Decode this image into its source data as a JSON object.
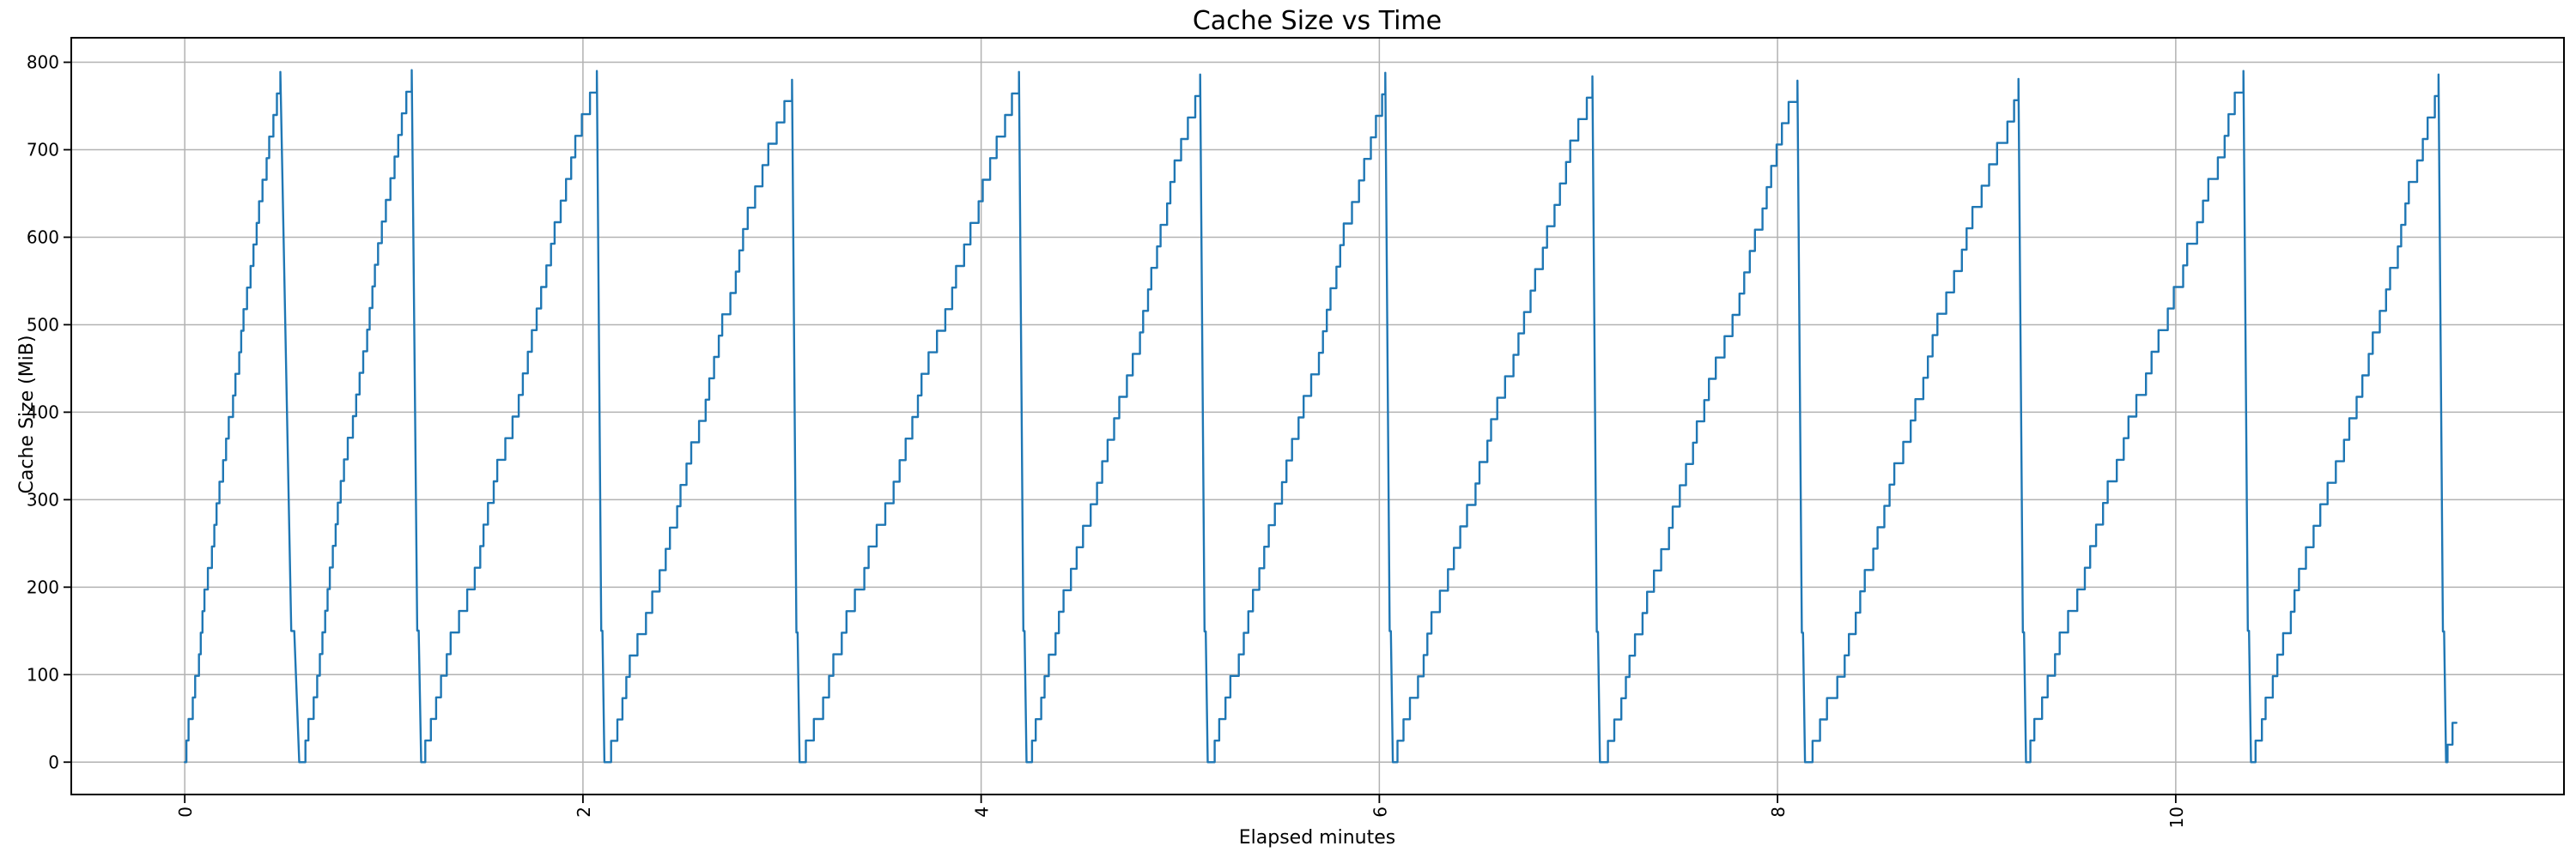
{
  "figure": {
    "background_color": "#ffffff",
    "kind": "matplotlib line plot"
  },
  "chart_data": {
    "type": "line",
    "title": "Cache Size vs Time",
    "xlabel": "Elapsed minutes",
    "ylabel": "Cache Size (MiB)",
    "x_ticks": [
      0,
      2,
      4,
      6,
      8,
      10
    ],
    "x_tick_rotation_deg": 90,
    "y_ticks": [
      0,
      100,
      200,
      300,
      400,
      500,
      600,
      700,
      800
    ],
    "xlim": [
      -0.57,
      11.95
    ],
    "ylim": [
      -37,
      828
    ],
    "grid": true,
    "legend": false,
    "line_color": "#1f77b4",
    "grid_color": "#b2b2b2",
    "pattern": "sawtooth: cache fills in ~25 MiB staircase steps up to ~790 MiB, then is rapidly evicted back to 0; repeats 12 times over ~11.4 minutes",
    "step_mib": 24.7,
    "peak_mib_approx": 790,
    "cycles": [
      {
        "start": 0.0,
        "peak_time": 0.48,
        "peak": 789
      },
      {
        "start": 0.58,
        "peak_time": 1.14,
        "peak": 791
      },
      {
        "start": 1.19,
        "peak_time": 2.07,
        "peak": 790
      },
      {
        "start": 2.11,
        "peak_time": 3.05,
        "peak": 780
      },
      {
        "start": 3.09,
        "peak_time": 4.19,
        "peak": 789
      },
      {
        "start": 4.23,
        "peak_time": 5.1,
        "peak": 786
      },
      {
        "start": 5.14,
        "peak_time": 6.03,
        "peak": 788
      },
      {
        "start": 6.07,
        "peak_time": 7.07,
        "peak": 784
      },
      {
        "start": 7.11,
        "peak_time": 8.1,
        "peak": 779
      },
      {
        "start": 8.14,
        "peak_time": 9.21,
        "peak": 781
      },
      {
        "start": 9.25,
        "peak_time": 10.34,
        "peak": 790
      },
      {
        "start": 10.38,
        "peak_time": 11.32,
        "peak": 786
      }
    ],
    "tail_points": [
      [
        11.36,
        0
      ],
      [
        11.365,
        0
      ],
      [
        11.365,
        20
      ],
      [
        11.39,
        20
      ],
      [
        11.39,
        45
      ],
      [
        11.41,
        45
      ]
    ]
  }
}
